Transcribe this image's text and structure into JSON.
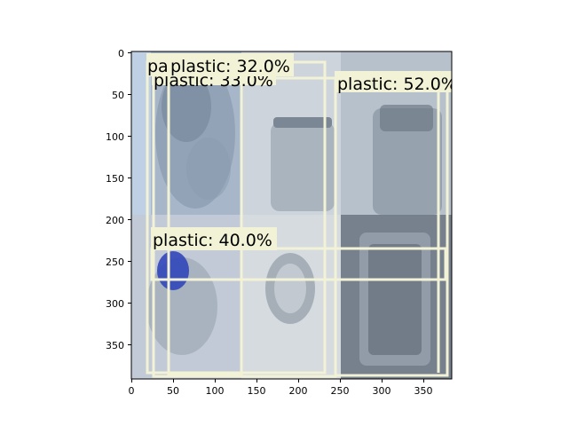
{
  "figure": {
    "xaxis": {
      "ticks": [
        "0",
        "50",
        "100",
        "150",
        "200",
        "250",
        "300",
        "350"
      ]
    },
    "yaxis": {
      "ticks": [
        "0",
        "50",
        "100",
        "150",
        "200",
        "250",
        "300",
        "350"
      ]
    }
  },
  "image_tiles": [
    {
      "content": "crushed plastic water bottles",
      "tone": "#9fb0c2"
    },
    {
      "content": "empty glass jar, side view",
      "tone": "#c6cfd8"
    },
    {
      "content": "tall glass jar with threaded neck",
      "tone": "#b9c3cc"
    },
    {
      "content": "jar with blue lid lying on side",
      "tone": "#c2cbd6"
    },
    {
      "content": "glass jar, bottom view",
      "tone": "#d2d7dc"
    },
    {
      "content": "rectangular glass dish",
      "tone": "#7d8896"
    }
  ],
  "detections": [
    {
      "label": "pa",
      "class": "plastic"
    },
    {
      "label": "plastic: 32.0%",
      "class": "plastic",
      "score": 32.0
    },
    {
      "label": "plastic: 33.0%",
      "class": "plastic"
    },
    {
      "label": "plastic: 52.0%",
      "class": "plastic",
      "score": 52.0
    },
    {
      "label": "plastic: 40.0%",
      "class": "plastic",
      "score": 40.0
    }
  ],
  "colors": {
    "box": "#f2f2d6",
    "label_bg": "#f2f2d6",
    "axis": "#000000"
  }
}
